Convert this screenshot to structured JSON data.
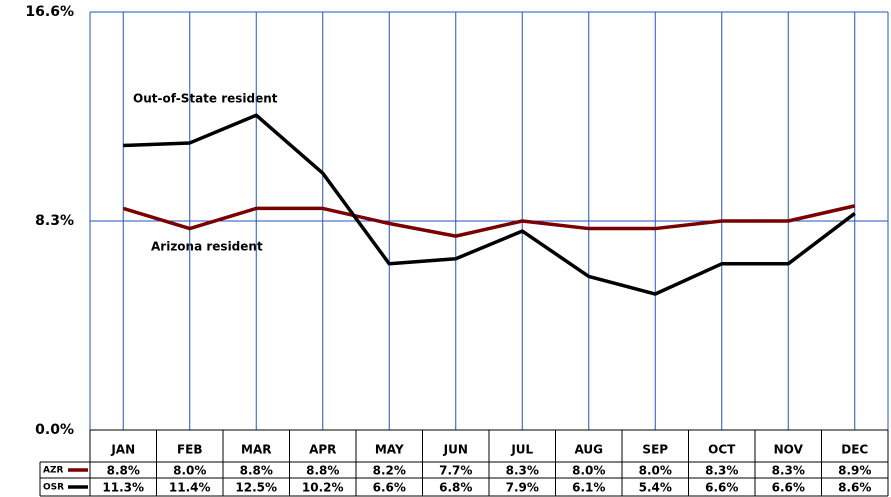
{
  "chart_data": {
    "type": "line",
    "categories": [
      "JAN",
      "FEB",
      "MAR",
      "APR",
      "MAY",
      "JUN",
      "JUL",
      "AUG",
      "SEP",
      "OCT",
      "NOV",
      "DEC"
    ],
    "series": [
      {
        "name": "AZR",
        "color": "#7a0000",
        "values": [
          8.8,
          8.0,
          8.8,
          8.8,
          8.2,
          7.7,
          8.3,
          8.0,
          8.0,
          8.3,
          8.3,
          8.9
        ],
        "value_labels": [
          "8.8%",
          "8.0%",
          "8.8%",
          "8.8%",
          "8.2%",
          "7.7%",
          "8.3%",
          "8.0%",
          "8.0%",
          "8.3%",
          "8.3%",
          "8.9%"
        ]
      },
      {
        "name": "OSR",
        "color": "#000000",
        "values": [
          11.3,
          11.4,
          12.5,
          10.2,
          6.6,
          6.8,
          7.9,
          6.1,
          5.4,
          6.6,
          6.6,
          8.6
        ],
        "value_labels": [
          "11.3%",
          "11.4%",
          "12.5%",
          "10.2%",
          "6.6%",
          "6.8%",
          "7.9%",
          "6.1%",
          "5.4%",
          "6.6%",
          "6.6%",
          "8.6%"
        ]
      }
    ],
    "annotations": [
      "Out-of-State resident",
      "Arizona resident"
    ],
    "ylim": [
      0,
      16.6
    ],
    "yticks": [
      {
        "value": 0,
        "label": "0.0%"
      },
      {
        "value": 8.3,
        "label": "8.3%"
      },
      {
        "value": 16.6,
        "label": "16.6%"
      }
    ],
    "grid": true
  }
}
